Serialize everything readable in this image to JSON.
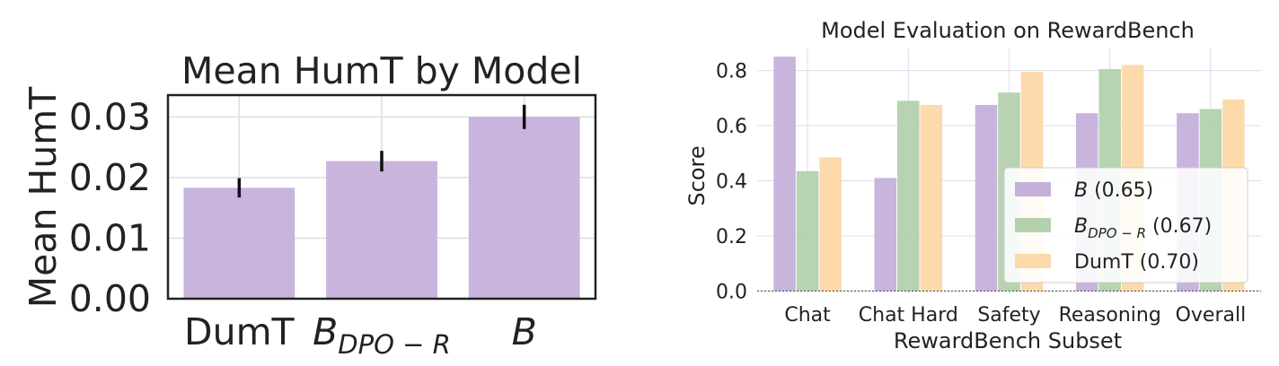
{
  "colors": {
    "B": "#c5b0da",
    "B_DPO_R": "#b3d1ad",
    "DumT": "#fdd8a8",
    "grid": "#dcdcec",
    "axis": "#222222",
    "errorbar": "#111111"
  },
  "chart_data": [
    {
      "type": "bar",
      "title": "Mean HumT by Model",
      "xlabel": "",
      "ylabel": "Mean HumT",
      "categories": [
        "DumT",
        "B_DPO − R",
        "B"
      ],
      "category_labels": [
        {
          "main": "DumT",
          "sub": ""
        },
        {
          "main": "B",
          "sub": "DPO − R"
        },
        {
          "main": "B",
          "sub": ""
        }
      ],
      "values": [
        0.0183,
        0.0227,
        0.03
      ],
      "error": [
        0.0016,
        0.0017,
        0.002
      ],
      "ylim": [
        0,
        0.0336
      ],
      "yticks": [
        0.0,
        0.01,
        0.02,
        0.03
      ],
      "ytick_labels": [
        "0.00",
        "0.01",
        "0.02",
        "0.03"
      ],
      "grid": true,
      "color": "#c5b0da"
    },
    {
      "type": "bar",
      "title": "Model Evaluation on RewardBench",
      "xlabel": "RewardBench Subset",
      "ylabel": "Score",
      "categories": [
        "Chat",
        "Chat Hard",
        "Safety",
        "Reasoning",
        "Overall"
      ],
      "series": [
        {
          "name": "B",
          "sub": "",
          "legend_suffix": " (0.65)",
          "color": "#c5b0da",
          "values": [
            0.85,
            0.41,
            0.675,
            0.645,
            0.645
          ]
        },
        {
          "name": "B",
          "sub": "DPO − R",
          "legend_suffix": " (0.67)",
          "color": "#b3d1ad",
          "values": [
            0.435,
            0.69,
            0.72,
            0.805,
            0.66
          ]
        },
        {
          "name": "DumT",
          "sub": "",
          "legend_suffix": " (0.70)",
          "color": "#fdd8a8",
          "values": [
            0.485,
            0.675,
            0.795,
            0.82,
            0.695
          ]
        }
      ],
      "ylim": [
        -0.01,
        0.88
      ],
      "yticks": [
        0.0,
        0.2,
        0.4,
        0.6,
        0.8
      ],
      "ytick_labels": [
        "0.0",
        "0.2",
        "0.4",
        "0.6",
        "0.8"
      ],
      "grid": true,
      "legend_position": "lower-right"
    }
  ]
}
